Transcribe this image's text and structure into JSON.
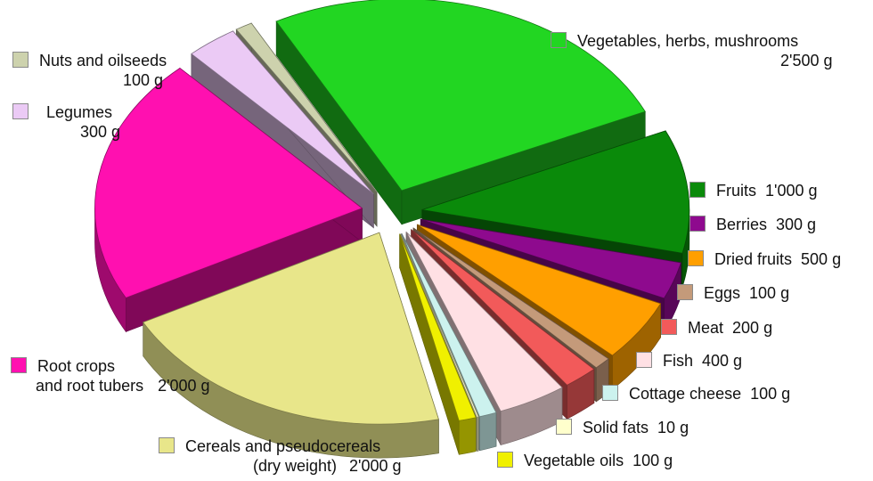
{
  "chart_data": {
    "type": "pie",
    "unit": "g",
    "slices": [
      {
        "label": "Vegetables, herbs, mushrooms",
        "amount": "2'500 g",
        "value": 2500,
        "color": "#22d622"
      },
      {
        "label": "Fruits",
        "amount": "1'000 g",
        "value": 1000,
        "color": "#0a8a0a"
      },
      {
        "label": "Berries",
        "amount": "300 g",
        "value": 300,
        "color": "#8e0a8e"
      },
      {
        "label": "Dried fruits",
        "amount": "500 g",
        "value": 500,
        "color": "#ff9f00"
      },
      {
        "label": "Eggs",
        "amount": "100 g",
        "value": 100,
        "color": "#c49a7a"
      },
      {
        "label": "Meat",
        "amount": "200 g",
        "value": 200,
        "color": "#f25a5a"
      },
      {
        "label": "Fish",
        "amount": "400 g",
        "value": 400,
        "color": "#ffe0e4"
      },
      {
        "label": "Cottage cheese",
        "amount": "100 g",
        "value": 100,
        "color": "#ccf2ee"
      },
      {
        "label": "Solid fats",
        "amount": "10 g",
        "value": 10,
        "color": "#ffffcc"
      },
      {
        "label": "Vegetable oils",
        "amount": "100 g",
        "value": 100,
        "color": "#f0f000"
      },
      {
        "label": "Cereals and pseudocereals",
        "sublabel": "(dry weight)",
        "amount": "2'000 g",
        "value": 2000,
        "color": "#e8e68a"
      },
      {
        "label": "Root crops",
        "sublabel": "and root tubers",
        "amount": "2'000 g",
        "value": 2000,
        "color": "#ff10b0"
      },
      {
        "label": "Legumes",
        "amount": "300 g",
        "value": 300,
        "color": "#ebcaf5"
      },
      {
        "label": "Nuts and oilseeds",
        "amount": "100 g",
        "value": 100,
        "color": "#cdd2ad"
      }
    ]
  }
}
